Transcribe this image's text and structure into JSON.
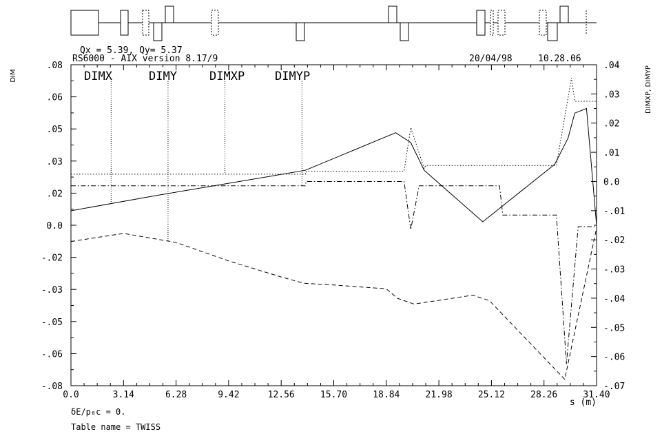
{
  "header": {
    "tunes": "Qx = 5.39, Qy= 5.37",
    "program": "RS6000 - AIX version 8.17/9",
    "date": "20/04/98",
    "time": "10.28.06"
  },
  "footer": {
    "delta_line": "δE/p₀c = 0.",
    "table_line": "Table name = TWISS"
  },
  "chart_data": {
    "type": "line",
    "title": "",
    "xlabel": "s (m)",
    "ylabel": "DIM",
    "y2label": "DIMXP, DIMYP",
    "xlim": [
      0,
      31.4
    ],
    "ylim": [
      -0.08,
      0.08
    ],
    "y2lim": [
      -0.07,
      0.04
    ],
    "x_ticks": [
      0.0,
      3.14,
      6.28,
      9.42,
      12.56,
      15.7,
      18.84,
      21.98,
      25.12,
      28.26,
      31.4
    ],
    "x_tick_labels": [
      "0.0",
      "3.14",
      "6.28",
      "9.42",
      "12.56",
      "15.70",
      "18.84",
      "21.98",
      "25.12",
      "28.26",
      "31.40"
    ],
    "y_ticks": [
      0.08,
      0.06,
      0.05,
      0.03,
      0.02,
      0.0,
      -0.02,
      -0.03,
      -0.05,
      -0.06,
      -0.08
    ],
    "y_tick_labels": [
      ".08",
      ".06",
      ".05",
      ".03",
      ".02",
      "0.0",
      "-.02",
      "-.03",
      "-.05",
      "-.06",
      "-.08"
    ],
    "y2_ticks": [
      0.04,
      0.03,
      0.02,
      0.01,
      0.0,
      -0.01,
      -0.02,
      -0.03,
      -0.04,
      -0.05,
      -0.06,
      -0.07
    ],
    "y2_tick_labels": [
      ".04",
      ".03",
      ".02",
      ".01",
      "0.0",
      "-.01",
      "-.02",
      "-.03",
      "-.04",
      "-.05",
      "-.06",
      "-.07"
    ],
    "legend_labels": [
      "DIMX",
      "DIMY",
      "DIMXP",
      "DIMYP"
    ],
    "series": [
      {
        "name": "DIMX",
        "axis": "left",
        "style": "solid",
        "x": [
          0.0,
          5.0,
          10.0,
          14.0,
          19.4,
          20.3,
          21.1,
          24.6,
          28.9,
          29.7,
          30.1,
          30.8,
          31.4
        ],
        "y": [
          0.0072,
          0.0147,
          0.0217,
          0.0274,
          0.0461,
          0.0412,
          0.0274,
          0.0017,
          0.0304,
          0.0435,
          0.0559,
          0.0582,
          0.0
        ]
      },
      {
        "name": "DIMY",
        "axis": "left",
        "style": "dashed",
        "x": [
          0.0,
          3.14,
          6.28,
          9.42,
          12.56,
          13.9,
          15.7,
          18.84,
          19.5,
          20.5,
          24.0,
          25.0,
          29.5,
          31.4
        ],
        "y": [
          -0.0081,
          -0.0041,
          -0.0086,
          -0.0178,
          -0.0258,
          -0.0289,
          -0.0298,
          -0.0317,
          -0.0364,
          -0.0393,
          -0.0349,
          -0.0376,
          -0.0768,
          -0.0014
        ]
      },
      {
        "name": "DIMXP",
        "axis": "right",
        "style": "dotted",
        "x": [
          0.0,
          14.0,
          14.05,
          19.9,
          20.3,
          21.1,
          21.2,
          28.9,
          29.0,
          29.9,
          30.1,
          31.4
        ],
        "y": [
          0.0025,
          0.0025,
          0.0035,
          0.0035,
          0.0185,
          0.0045,
          0.0055,
          0.0055,
          0.0055,
          0.0355,
          0.0275,
          0.0275
        ]
      },
      {
        "name": "DIMYP",
        "axis": "right",
        "style": "dashdot",
        "x": [
          0.0,
          14.0,
          14.05,
          19.9,
          20.3,
          20.8,
          25.6,
          25.8,
          29.0,
          29.6,
          30.3,
          31.4
        ],
        "y": [
          -0.0015,
          -0.0015,
          0.0,
          0.0,
          -0.0165,
          -0.0015,
          -0.0015,
          -0.0115,
          -0.0115,
          -0.0625,
          -0.0155,
          -0.0155
        ]
      }
    ]
  }
}
